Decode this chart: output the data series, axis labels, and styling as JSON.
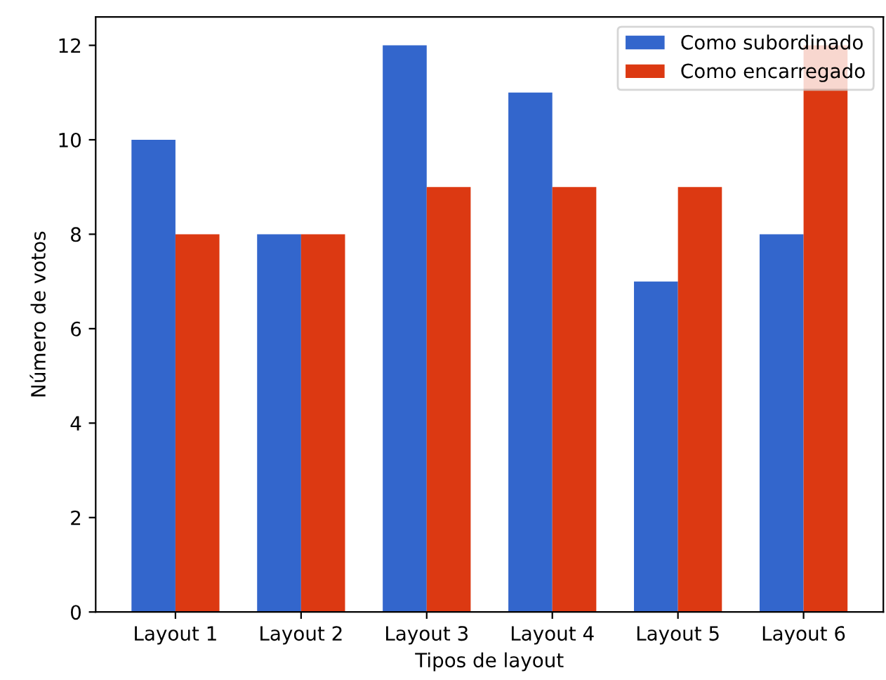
{
  "chart_data": {
    "type": "bar",
    "xlabel": "Tipos de layout",
    "ylabel": "Número de votos",
    "categories": [
      "Layout 1",
      "Layout 2",
      "Layout 3",
      "Layout 4",
      "Layout 5",
      "Layout 6"
    ],
    "series": [
      {
        "name": "Como subordinado",
        "color": "#3366cc",
        "values": [
          10,
          8,
          12,
          11,
          7,
          8
        ]
      },
      {
        "name": "Como encarregado",
        "color": "#dc3912",
        "values": [
          8,
          8,
          9,
          9,
          9,
          12
        ]
      }
    ],
    "ylim": [
      0,
      12.6
    ],
    "yticks": [
      0,
      2,
      4,
      6,
      8,
      10,
      12
    ],
    "legend": "top right",
    "grid": false
  }
}
